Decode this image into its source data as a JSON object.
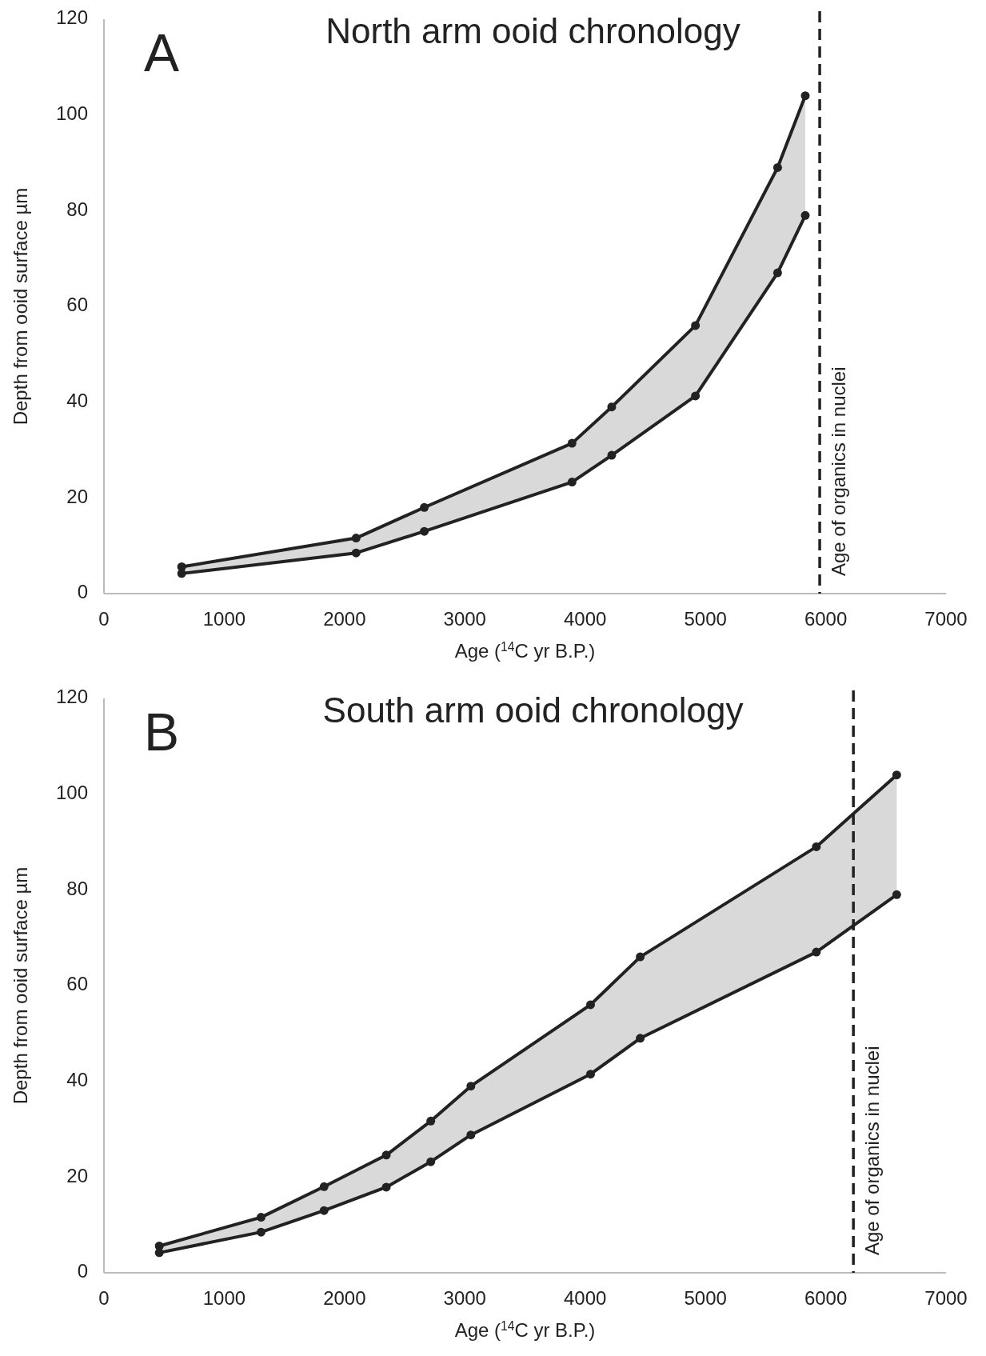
{
  "chart_data": [
    {
      "type": "line",
      "title": "North arm ooid chronology",
      "annotations": [
        "A"
      ],
      "xlabel": "Age ($^{14}$C yr B.P.)",
      "ylabel": "Depth from ooid surface µm",
      "x": [
        646,
        2096,
        2663,
        3891,
        4221,
        4917,
        5600,
        5830
      ],
      "series": [
        {
          "color": "#222222",
          "values": [
            5.6,
            11.6,
            18,
            31.4,
            39,
            56,
            89,
            104
          ],
          "lower": [
            4.2,
            8.5,
            13,
            23.3,
            28.9,
            41.3,
            67,
            79
          ],
          "upper": [
            5.6,
            11.6,
            18,
            31.4,
            39,
            56,
            89,
            104
          ]
        },
        {
          "color": "#222222",
          "values": [
            4.2,
            8.5,
            13,
            23.3,
            28.9,
            41.3,
            67,
            79
          ]
        }
      ],
      "xlim": [
        0,
        7000
      ],
      "xticks": [
        0,
        1000,
        2000,
        3000,
        4000,
        5000,
        6000,
        7000
      ],
      "ylim": [
        0,
        120
      ],
      "yticks": [
        0,
        20,
        40,
        60,
        80,
        100,
        120
      ],
      "marker": "circle",
      "line_style": "solid",
      "grid": false,
      "ref_lines": [
        {
          "axis": "x",
          "value": 5950,
          "label": "Age of organics in nuclei",
          "color": "#222222",
          "line_style": "dashed"
        }
      ]
    },
    {
      "type": "line",
      "title": "South arm ooid chronology",
      "annotations": [
        "B"
      ],
      "xlabel": "Age ($^{14}$C yr B.P.)",
      "ylabel": "Depth from ooid surface µm",
      "x": [
        460,
        1306,
        1830,
        2347,
        2717,
        3050,
        4045,
        4458,
        5922,
        6590
      ],
      "series": [
        {
          "color": "#222222",
          "values": [
            5.6,
            11.6,
            18,
            24.6,
            31.7,
            39,
            56,
            66,
            89,
            104
          ],
          "lower": [
            4.2,
            8.5,
            13,
            17.9,
            23.2,
            28.8,
            41.5,
            49,
            67,
            79
          ],
          "upper": [
            5.6,
            11.6,
            18,
            24.6,
            31.7,
            39,
            56,
            66,
            89,
            104
          ]
        },
        {
          "color": "#222222",
          "values": [
            4.2,
            8.5,
            13,
            17.9,
            23.2,
            28.8,
            41.5,
            49,
            67,
            79
          ]
        }
      ],
      "xlim": [
        0,
        7000
      ],
      "xticks": [
        0,
        1000,
        2000,
        3000,
        4000,
        5000,
        6000,
        7000
      ],
      "ylim": [
        0,
        120
      ],
      "yticks": [
        0,
        20,
        40,
        60,
        80,
        100,
        120
      ],
      "marker": "circle",
      "line_style": "solid",
      "grid": false,
      "ref_lines": [
        {
          "axis": "x",
          "value": 6230,
          "label": "Age of organics in nuclei",
          "color": "#222222",
          "line_style": "dashed"
        }
      ]
    }
  ]
}
